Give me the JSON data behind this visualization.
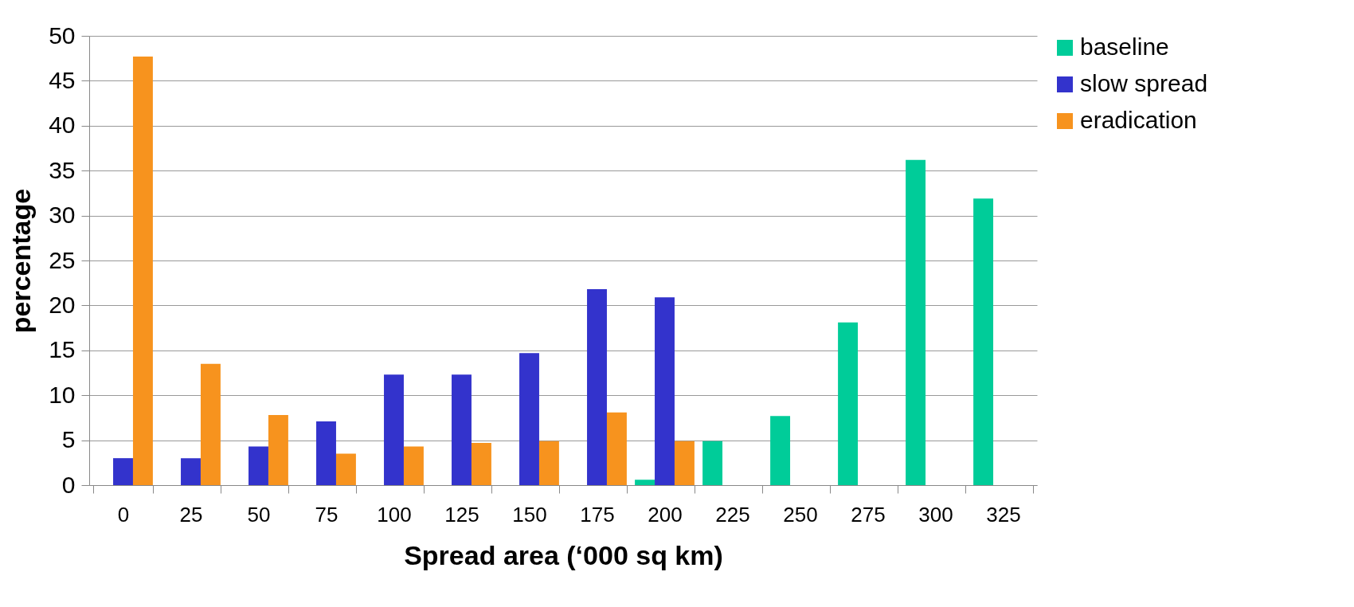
{
  "chart_data": {
    "type": "bar",
    "xlabel": "Spread area (‘000 sq km)",
    "ylabel": "percentage",
    "categories": [
      "0",
      "25",
      "50",
      "75",
      "100",
      "125",
      "150",
      "175",
      "200",
      "225",
      "250",
      "275",
      "300",
      "325"
    ],
    "series": [
      {
        "name": "baseline",
        "color": "#00cc99",
        "values": [
          0,
          0,
          0,
          0,
          0,
          0,
          0,
          0,
          0.6,
          4.9,
          7.7,
          18.1,
          36.2,
          31.9
        ]
      },
      {
        "name": "slow spread",
        "color": "#3333cc",
        "values": [
          3,
          3,
          4.3,
          7.1,
          12.3,
          12.3,
          14.7,
          21.8,
          20.9,
          0,
          0,
          0,
          0,
          0
        ]
      },
      {
        "name": "eradication",
        "color": "#f7931e",
        "values": [
          47.7,
          13.5,
          7.8,
          3.5,
          4.3,
          4.7,
          4.9,
          8.1,
          4.9,
          0,
          0,
          0,
          0,
          0
        ]
      }
    ],
    "ylim": [
      0,
      50
    ],
    "yticks": [
      0,
      5,
      10,
      15,
      20,
      25,
      30,
      35,
      40,
      45,
      50
    ],
    "grid": "y",
    "legend": "right"
  }
}
